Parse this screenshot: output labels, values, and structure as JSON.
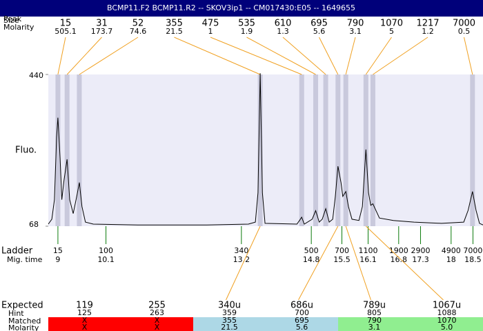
{
  "header": {
    "title": "BCMP11.F2  BCMP11.R2 -- SKOV3ip1 -- CM017430:E05 -- 1649655"
  },
  "peaks": {
    "labels": [
      "Peak",
      "Size",
      "Molarity"
    ],
    "size": [
      15,
      31,
      52,
      355,
      475,
      535,
      610,
      695,
      790,
      1070,
      1217,
      7000
    ],
    "molarity": [
      505.1,
      173.7,
      74.6,
      21.5,
      1,
      1.9,
      1.3,
      5.6,
      3.1,
      5,
      1.2,
      0.5
    ],
    "time": [
      9.0,
      9.21,
      9.49,
      13.63,
      14.58,
      14.9,
      15.13,
      15.41,
      15.59,
      16.05,
      16.21,
      18.49
    ]
  },
  "plot": {
    "ylabel": "Fluo.",
    "ylim": [
      68,
      440
    ],
    "yticks": [
      68,
      440
    ],
    "xlim": [
      8.78,
      18.73
    ],
    "trace": {
      "time": [
        8.78,
        8.86,
        8.92,
        8.97,
        9.0,
        9.05,
        9.09,
        9.14,
        9.21,
        9.27,
        9.35,
        9.43,
        9.49,
        9.55,
        9.63,
        9.81,
        10.83,
        12.41,
        13.36,
        13.52,
        13.58,
        13.63,
        13.68,
        13.74,
        14.47,
        14.53,
        14.58,
        14.64,
        14.82,
        14.9,
        14.98,
        15.05,
        15.13,
        15.21,
        15.29,
        15.35,
        15.41,
        15.48,
        15.52,
        15.59,
        15.65,
        15.73,
        15.89,
        15.97,
        16.05,
        16.11,
        16.16,
        16.21,
        16.27,
        16.36,
        16.68,
        17.15,
        17.78,
        18.29,
        18.39,
        18.49,
        18.57,
        18.65,
        18.73
      ],
      "fluo": [
        73,
        85,
        133,
        286,
        334,
        235,
        133,
        181,
        232,
        133,
        99,
        141,
        175,
        116,
        78,
        73,
        71,
        71,
        73,
        78,
        150,
        443,
        150,
        75,
        73,
        82,
        90,
        73,
        85,
        106,
        78,
        85,
        111,
        78,
        85,
        141,
        215,
        175,
        141,
        153,
        116,
        85,
        82,
        116,
        256,
        150,
        119,
        123,
        109,
        88,
        82,
        78,
        75,
        78,
        107,
        153,
        107,
        75,
        71
      ]
    }
  },
  "ladder": {
    "labels": [
      "Ladder",
      "Mig. time"
    ],
    "size": [
      15,
      100,
      340,
      500,
      700,
      1100,
      1900,
      2900,
      4900,
      7000
    ],
    "time": [
      9,
      10.1,
      13.2,
      14.8,
      15.5,
      16.1,
      16.8,
      17.3,
      18,
      18.5
    ]
  },
  "table": {
    "row_labels": [
      "Expected",
      "Hint",
      "Matched",
      "Molarity"
    ],
    "columns": [
      {
        "expected": "119",
        "hint": "125",
        "matched": "X",
        "molarity": "X",
        "color": "#ff0000"
      },
      {
        "expected": "255",
        "hint": "263",
        "matched": "X",
        "molarity": "X",
        "color": "#ff0000"
      },
      {
        "expected": "340u",
        "hint": "359",
        "matched": "355",
        "molarity": "21.5",
        "color": "#add8e6"
      },
      {
        "expected": "686u",
        "hint": "700",
        "matched": "695",
        "molarity": "5.6",
        "color": "#add8e6"
      },
      {
        "expected": "789u",
        "hint": "805",
        "matched": "790",
        "molarity": "3.1",
        "color": "#90ee90"
      },
      {
        "expected": "1067u",
        "hint": "1088",
        "matched": "1070",
        "molarity": "5.0",
        "color": "#90ee90"
      }
    ]
  }
}
